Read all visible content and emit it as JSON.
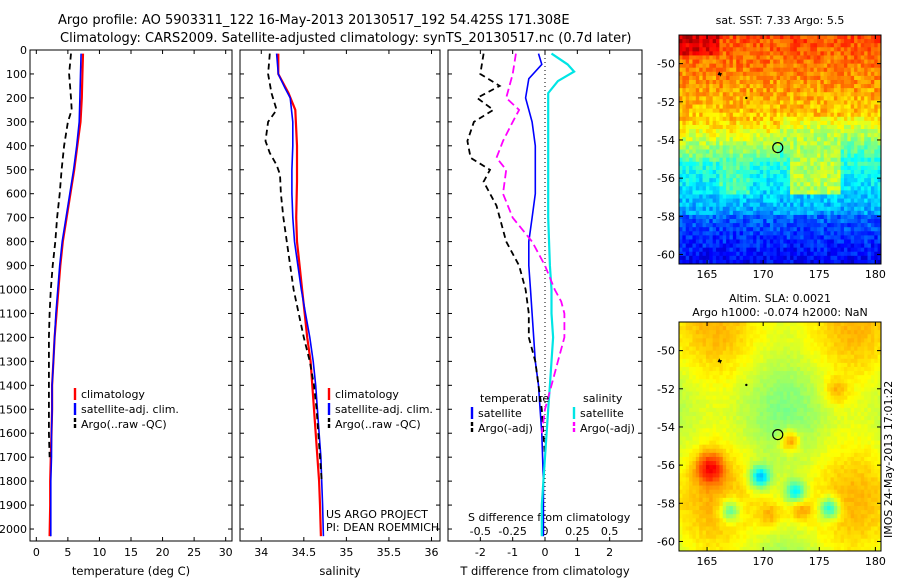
{
  "header": {
    "line1": "Argo profile: AO 5903311_122 16-May-2013 20130517_192 54.425S 171.308E",
    "line2": "Climatology: CARS2009. Satellite-adjusted climatology: synTS_20130517.nc (0.7d later)"
  },
  "side_stamp": "IMOS 24-May-2013 17:01:22",
  "colors": {
    "clim": "#ff0000",
    "sat": "#0000ff",
    "argo": "#000000",
    "sat_s": "#00e5e5",
    "argo_s": "#ff00ff"
  },
  "chart_data": [
    {
      "id": "temperature",
      "type": "line",
      "xlabel": "temperature (deg C)",
      "xlim": [
        -1,
        31
      ],
      "ylim": [
        0,
        2050
      ],
      "xticks": [
        0,
        5,
        10,
        15,
        20,
        25,
        30
      ],
      "yticks": [
        0,
        100,
        200,
        300,
        400,
        500,
        600,
        700,
        800,
        900,
        1000,
        1100,
        1200,
        1300,
        1400,
        1500,
        1600,
        1700,
        1800,
        1900,
        2000
      ],
      "legend": [
        "climatology",
        "satellite-adj. clim.",
        "Argo(..raw -QC)"
      ],
      "series": [
        {
          "name": "climatology",
          "color": "#ff0000",
          "dash": "",
          "width": 2.2,
          "points": [
            [
              7.4,
              15
            ],
            [
              7.3,
              100
            ],
            [
              7.2,
              200
            ],
            [
              7.0,
              300
            ],
            [
              6.5,
              400
            ],
            [
              6.0,
              500
            ],
            [
              5.4,
              600
            ],
            [
              4.8,
              700
            ],
            [
              4.2,
              800
            ],
            [
              3.8,
              900
            ],
            [
              3.5,
              1000
            ],
            [
              3.2,
              1100
            ],
            [
              2.9,
              1200
            ],
            [
              2.7,
              1300
            ],
            [
              2.5,
              1400
            ],
            [
              2.5,
              1500
            ],
            [
              2.4,
              1600
            ],
            [
              2.3,
              1700
            ],
            [
              2.2,
              1800
            ],
            [
              2.2,
              1900
            ],
            [
              2.1,
              2030
            ]
          ]
        },
        {
          "name": "satellite-adj. clim.",
          "color": "#0000ff",
          "dash": "",
          "width": 1.6,
          "points": [
            [
              7.1,
              15
            ],
            [
              7.0,
              100
            ],
            [
              6.9,
              200
            ],
            [
              6.8,
              300
            ],
            [
              6.4,
              400
            ],
            [
              5.9,
              500
            ],
            [
              5.3,
              600
            ],
            [
              4.7,
              700
            ],
            [
              4.1,
              800
            ],
            [
              3.7,
              900
            ],
            [
              3.4,
              1000
            ],
            [
              3.1,
              1100
            ],
            [
              2.9,
              1200
            ],
            [
              2.7,
              1300
            ],
            [
              2.5,
              1400
            ],
            [
              2.5,
              1500
            ],
            [
              2.4,
              1600
            ],
            [
              2.4,
              1700
            ],
            [
              2.3,
              1800
            ],
            [
              2.3,
              1900
            ],
            [
              2.3,
              2030
            ]
          ]
        },
        {
          "name": "Argo(..raw -QC)",
          "color": "#000000",
          "dash": "6,4",
          "width": 1.8,
          "points": [
            [
              5.5,
              15
            ],
            [
              5.2,
              100
            ],
            [
              5.5,
              200
            ],
            [
              5.6,
              250
            ],
            [
              5.0,
              300
            ],
            [
              4.4,
              400
            ],
            [
              4.0,
              500
            ],
            [
              3.7,
              600
            ],
            [
              3.3,
              700
            ],
            [
              3.0,
              800
            ],
            [
              2.6,
              900
            ],
            [
              2.3,
              1000
            ],
            [
              2.1,
              1100
            ],
            [
              2.0,
              1200
            ],
            [
              2.0,
              1300
            ],
            [
              2.0,
              1400
            ],
            [
              2.0,
              1500
            ],
            [
              2.0,
              1600
            ],
            [
              2.1,
              1700
            ]
          ]
        }
      ]
    },
    {
      "id": "salinity",
      "type": "line",
      "xlabel": "salinity",
      "xlim": [
        33.75,
        36.1
      ],
      "ylim": [
        0,
        2050
      ],
      "xticks": [
        34,
        34.5,
        35,
        35.5,
        36
      ],
      "legend": [
        "climatology",
        "satellite-adj. clim.",
        "Argo(..raw -QC)"
      ],
      "annotation": [
        "US ARGO PROJECT",
        "PI: DEAN ROEMMICH"
      ],
      "series": [
        {
          "name": "climatology",
          "color": "#ff0000",
          "dash": "",
          "width": 2.2,
          "points": [
            [
              34.2,
              15
            ],
            [
              34.2,
              100
            ],
            [
              34.32,
              180
            ],
            [
              34.4,
              250
            ],
            [
              34.42,
              400
            ],
            [
              34.42,
              550
            ],
            [
              34.41,
              700
            ],
            [
              34.42,
              800
            ],
            [
              34.45,
              900
            ],
            [
              34.48,
              1000
            ],
            [
              34.51,
              1100
            ],
            [
              34.54,
              1200
            ],
            [
              34.58,
              1300
            ],
            [
              34.6,
              1400
            ],
            [
              34.62,
              1500
            ],
            [
              34.64,
              1600
            ],
            [
              34.66,
              1700
            ],
            [
              34.68,
              1800
            ],
            [
              34.69,
              1900
            ],
            [
              34.7,
              2030
            ]
          ]
        },
        {
          "name": "satellite-adj. clim.",
          "color": "#0000ff",
          "dash": "",
          "width": 1.6,
          "points": [
            [
              34.18,
              15
            ],
            [
              34.2,
              100
            ],
            [
              34.28,
              160
            ],
            [
              34.34,
              200
            ],
            [
              34.37,
              300
            ],
            [
              34.37,
              400
            ],
            [
              34.36,
              500
            ],
            [
              34.36,
              600
            ],
            [
              34.37,
              700
            ],
            [
              34.39,
              800
            ],
            [
              34.43,
              900
            ],
            [
              34.47,
              1000
            ],
            [
              34.52,
              1100
            ],
            [
              34.57,
              1200
            ],
            [
              34.61,
              1300
            ],
            [
              34.64,
              1400
            ],
            [
              34.66,
              1500
            ],
            [
              34.68,
              1600
            ],
            [
              34.7,
              1700
            ],
            [
              34.71,
              1800
            ],
            [
              34.72,
              1900
            ],
            [
              34.73,
              2030
            ]
          ]
        },
        {
          "name": "Argo(..raw -QC)",
          "color": "#000000",
          "dash": "6,4",
          "width": 1.8,
          "points": [
            [
              34.1,
              15
            ],
            [
              34.08,
              100
            ],
            [
              34.12,
              180
            ],
            [
              34.18,
              250
            ],
            [
              34.08,
              300
            ],
            [
              34.05,
              380
            ],
            [
              34.1,
              430
            ],
            [
              34.18,
              480
            ],
            [
              34.22,
              520
            ],
            [
              34.23,
              600
            ],
            [
              34.26,
              700
            ],
            [
              34.3,
              800
            ],
            [
              34.34,
              900
            ],
            [
              34.38,
              1000
            ],
            [
              34.44,
              1100
            ],
            [
              34.5,
              1200
            ],
            [
              34.57,
              1300
            ],
            [
              34.62,
              1400
            ],
            [
              34.65,
              1500
            ],
            [
              34.67,
              1600
            ],
            [
              34.69,
              1700
            ],
            [
              34.71,
              1800
            ]
          ]
        }
      ]
    },
    {
      "id": "difference",
      "type": "line",
      "xlabel": "T difference from climatology",
      "xlabel_top": "S difference from climatology",
      "xlim": [
        -3,
        3
      ],
      "ylim": [
        0,
        2050
      ],
      "xticks_t": [
        -2,
        -1,
        0,
        1,
        2
      ],
      "xticks_s": [
        -0.5,
        -0.25,
        0,
        0.25,
        0.5
      ],
      "legend_t_title": "temperature",
      "legend_s_title": "salinity",
      "legend": [
        "satellite",
        "Argo(-adj)"
      ],
      "series": [
        {
          "name": "satellite",
          "color": "#0000ff",
          "dash": "",
          "width": 1.6,
          "points": [
            [
              -0.2,
              15
            ],
            [
              -0.1,
              60
            ],
            [
              -0.5,
              120
            ],
            [
              -0.6,
              200
            ],
            [
              -0.4,
              300
            ],
            [
              -0.3,
              400
            ],
            [
              -0.3,
              500
            ],
            [
              -0.3,
              600
            ],
            [
              -0.4,
              700
            ],
            [
              -0.5,
              800
            ],
            [
              -0.5,
              900
            ],
            [
              -0.45,
              1000
            ],
            [
              -0.4,
              1100
            ],
            [
              -0.35,
              1200
            ],
            [
              -0.3,
              1300
            ],
            [
              -0.2,
              1400
            ],
            [
              -0.15,
              1500
            ],
            [
              -0.1,
              1600
            ],
            [
              -0.05,
              1800
            ],
            [
              -0.05,
              2030
            ]
          ]
        },
        {
          "name": "Argo(-adj)",
          "color": "#000000",
          "dash": "6,4",
          "width": 1.8,
          "points": [
            [
              -1.9,
              15
            ],
            [
              -2.0,
              100
            ],
            [
              -1.4,
              150
            ],
            [
              -2.1,
              200
            ],
            [
              -1.6,
              250
            ],
            [
              -2.2,
              300
            ],
            [
              -2.4,
              380
            ],
            [
              -2.3,
              450
            ],
            [
              -1.7,
              500
            ],
            [
              -1.9,
              550
            ],
            [
              -1.5,
              650
            ],
            [
              -1.2,
              800
            ],
            [
              -0.8,
              900
            ],
            [
              -0.6,
              1000
            ],
            [
              -0.5,
              1100
            ],
            [
              -0.5,
              1200
            ],
            [
              -0.3,
              1300
            ],
            [
              -0.2,
              1400
            ],
            [
              -0.1,
              1500
            ],
            [
              -0.05,
              1600
            ],
            [
              0,
              1700
            ]
          ]
        },
        {
          "name": "satellite",
          "color": "#00e5e5",
          "dash": "",
          "width": 2.2,
          "points": [
            [
              0.2,
              15
            ],
            [
              0.7,
              60
            ],
            [
              0.9,
              90
            ],
            [
              0.4,
              130
            ],
            [
              0.1,
              180
            ],
            [
              0.1,
              300
            ],
            [
              0.1,
              500
            ],
            [
              0.1,
              700
            ],
            [
              0.15,
              900
            ],
            [
              0.2,
              1000
            ],
            [
              0.2,
              1100
            ],
            [
              0.25,
              1200
            ],
            [
              0.2,
              1300
            ],
            [
              0.15,
              1400
            ],
            [
              0.1,
              1500
            ],
            [
              0.05,
              1600
            ],
            [
              0,
              1700
            ],
            [
              -0.05,
              1800
            ],
            [
              -0.1,
              1900
            ],
            [
              -0.1,
              2030
            ]
          ]
        },
        {
          "name": "Argo(-adj)",
          "color": "#ff00ff",
          "dash": "8,4",
          "width": 1.8,
          "points": [
            [
              -0.9,
              15
            ],
            [
              -1.0,
              100
            ],
            [
              -1.2,
              200
            ],
            [
              -0.8,
              250
            ],
            [
              -1.0,
              300
            ],
            [
              -1.3,
              380
            ],
            [
              -1.5,
              450
            ],
            [
              -1.2,
              500
            ],
            [
              -1.3,
              600
            ],
            [
              -1.0,
              700
            ],
            [
              -0.4,
              800
            ],
            [
              0,
              900
            ],
            [
              0.3,
              1000
            ],
            [
              0.5,
              1050
            ],
            [
              0.6,
              1100
            ],
            [
              0.6,
              1200
            ],
            [
              0.4,
              1300
            ],
            [
              0.2,
              1400
            ],
            [
              0,
              1500
            ],
            [
              -0.1,
              1600
            ]
          ]
        }
      ]
    },
    {
      "id": "sst-map",
      "type": "heatmap",
      "title": "sat. SST: 7.33 Argo: 5.5",
      "xlim": [
        162.5,
        180.5
      ],
      "ylim": [
        -60.5,
        -48.5
      ],
      "xticks": [
        165,
        170,
        175,
        180
      ],
      "yticks": [
        -50,
        -52,
        -54,
        -56,
        -58,
        -60
      ],
      "marker": {
        "lon": 171.3,
        "lat": -54.4
      }
    },
    {
      "id": "sla-map",
      "type": "heatmap",
      "title": "Altim. SLA: 0.0021",
      "subtitle": "Argo h1000: -0.074 h2000: NaN",
      "xlim": [
        162.5,
        180.5
      ],
      "ylim": [
        -60.5,
        -48.5
      ],
      "xticks": [
        165,
        170,
        175,
        180
      ],
      "yticks": [
        -50,
        -52,
        -54,
        -56,
        -58,
        -60
      ],
      "marker": {
        "lon": 171.3,
        "lat": -54.4
      }
    }
  ]
}
